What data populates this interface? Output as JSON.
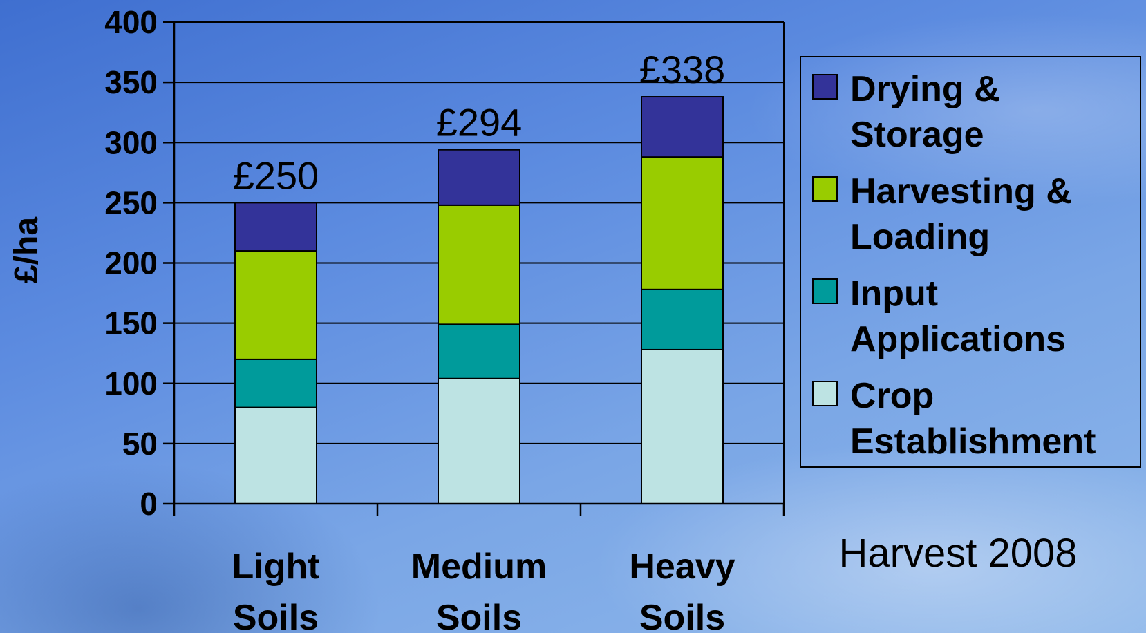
{
  "chart_data": {
    "type": "bar",
    "stacked": true,
    "categories": [
      [
        "Light",
        "Soils"
      ],
      [
        "Medium",
        "Soils"
      ],
      [
        "Heavy",
        "Soils"
      ]
    ],
    "series": [
      {
        "name": "Crop Establishment",
        "legend_lines": [
          "Crop",
          "Establishment"
        ],
        "color": "#bde3e3",
        "values": [
          80,
          104,
          128
        ]
      },
      {
        "name": "Input Applications",
        "legend_lines": [
          "Input",
          "Applications"
        ],
        "color": "#009b9b",
        "values": [
          40,
          45,
          50
        ]
      },
      {
        "name": "Harvesting & Loading",
        "legend_lines": [
          "Harvesting &",
          "Loading"
        ],
        "color": "#99cc00",
        "values": [
          90,
          99,
          110
        ]
      },
      {
        "name": "Drying & Storage",
        "legend_lines": [
          "Drying &",
          "Storage"
        ],
        "color": "#333399",
        "values": [
          40,
          46,
          50
        ]
      }
    ],
    "totals": [
      "£250",
      "£294",
      "£338"
    ],
    "ylabel": "£/ha",
    "xlabel": "",
    "ylim": [
      0,
      400
    ],
    "yticks": [
      0,
      50,
      100,
      150,
      200,
      250,
      300,
      350,
      400
    ],
    "grid": true,
    "legend_position": "right",
    "annotation": "Harvest 2008"
  }
}
